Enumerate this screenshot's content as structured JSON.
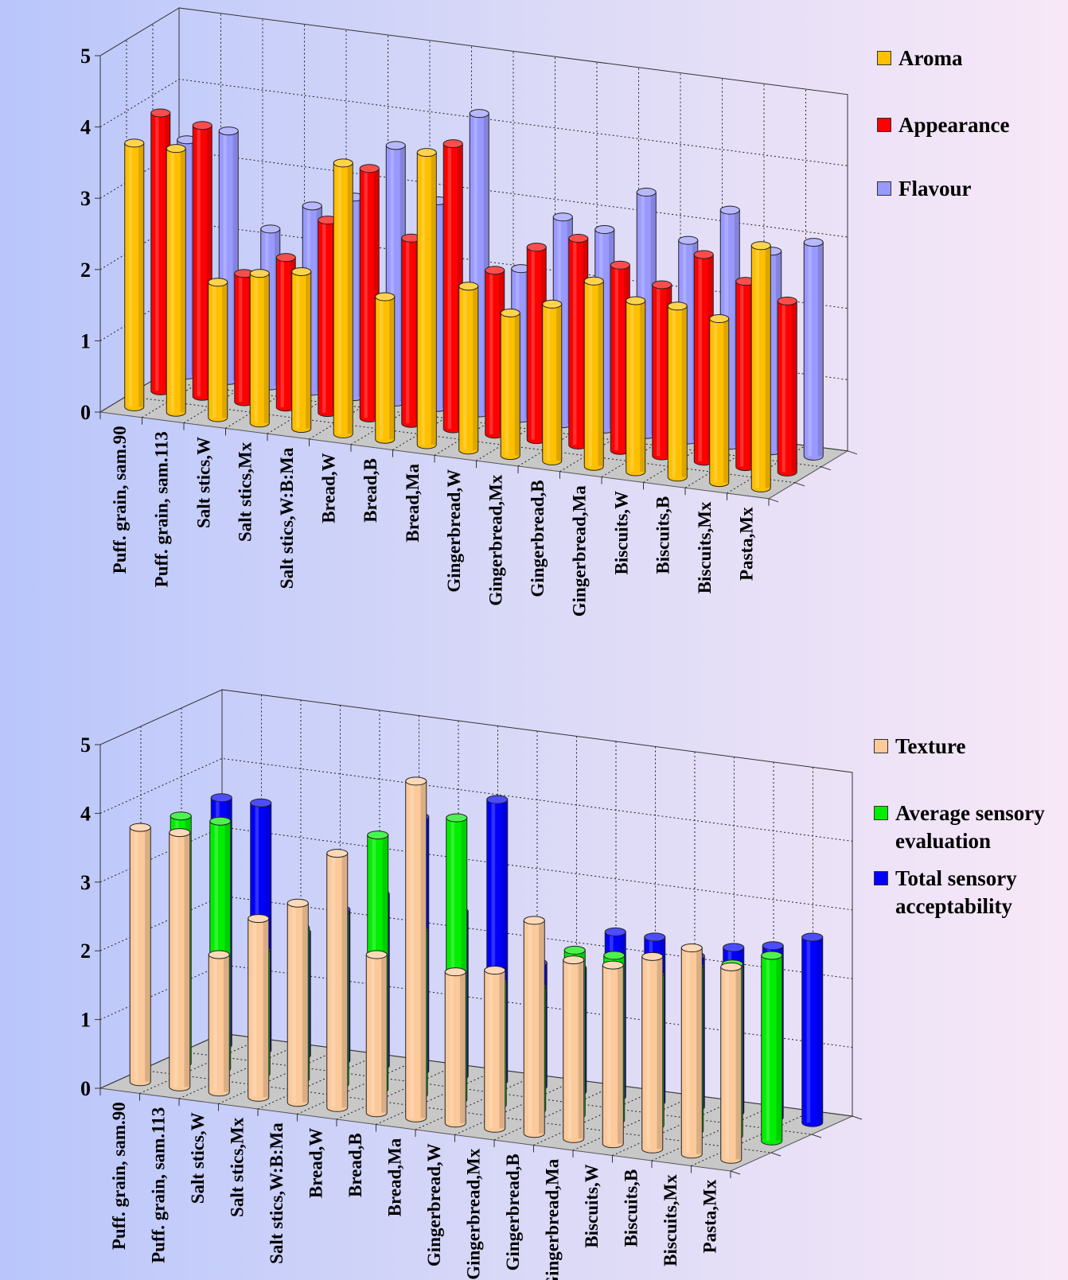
{
  "chart_data": [
    {
      "type": "bar",
      "ylim": [
        0,
        5
      ],
      "yticks": [
        "0",
        "1",
        "2",
        "3",
        "4",
        "5"
      ],
      "grid": true,
      "legend_position": "right",
      "categories": [
        "Puff. grain, sam.90",
        "Puff. grain, sam.113",
        "Salt stics,W",
        "Salt stics,Mx",
        "Salt stics,W:B:Ma",
        "Bread,W",
        "Bread,B",
        "Bread,Ma",
        "Gingerbread,W",
        "Gingerbread,Mx",
        "Gingerbread,B",
        "Gingerbread,Ma",
        "Biscuits,W",
        "Biscuits,B",
        "Biscuits,Mx",
        "Pasta,Mx"
      ],
      "series": [
        {
          "name": "Aroma",
          "color": "#ffc000",
          "values": [
            3.7,
            3.7,
            1.9,
            2.1,
            2.2,
            3.8,
            2.0,
            4.1,
            2.3,
            2.0,
            2.2,
            2.6,
            2.4,
            2.4,
            2.3,
            3.4
          ]
        },
        {
          "name": "Appearance",
          "color": "#ff0000",
          "values": [
            3.9,
            3.8,
            1.8,
            2.1,
            2.7,
            3.5,
            2.6,
            4.0,
            2.3,
            2.7,
            2.9,
            2.6,
            2.4,
            2.9,
            2.6,
            2.4
          ]
        },
        {
          "name": "Flavour",
          "color": "#9999ff",
          "values": [
            3.3,
            3.5,
            2.2,
            2.6,
            2.8,
            3.6,
            2.9,
            4.2,
            2.1,
            2.9,
            2.8,
            3.4,
            2.8,
            3.3,
            2.8,
            3.0
          ]
        }
      ]
    },
    {
      "type": "bar",
      "ylim": [
        0,
        5
      ],
      "yticks": [
        "0",
        "1",
        "2",
        "3",
        "4",
        "5"
      ],
      "grid": true,
      "legend_position": "right",
      "categories": [
        "Puff. grain, sam.90",
        "Puff. grain, sam.113",
        "Salt stics,W",
        "Salt stics,Mx",
        "Salt stics,W:B:Ma",
        "Bread,W",
        "Bread,B",
        "Bread,Ma",
        "Gingerbread,W",
        "Gingerbread,Mx",
        "Gingerbread,B",
        "Gingerbread,Ma",
        "Biscuits,W",
        "Biscuits,B",
        "Biscuits,Mx",
        "Pasta,Mx"
      ],
      "series": [
        {
          "name": "Texture",
          "color": "#fbc99a",
          "values": [
            3.7,
            3.7,
            2.0,
            2.6,
            2.9,
            3.7,
            2.3,
            4.9,
            2.2,
            2.3,
            3.1,
            2.6,
            2.6,
            2.8,
            3.0,
            2.8
          ]
        },
        {
          "name": "Average sensory evaluation",
          "color": "#00ee00",
          "values": [
            3.6,
            3.6,
            1.8,
            2.2,
            2.5,
            3.7,
            2.4,
            4.1,
            1.8,
            1.8,
            2.4,
            2.4,
            2.2,
            2.4,
            2.5,
            2.7
          ]
        },
        {
          "name": "Total sensory acceptability",
          "color": "#0000ff",
          "values": [
            3.6,
            3.6,
            1.8,
            2.2,
            2.5,
            3.7,
            2.4,
            4.1,
            1.8,
            1.8,
            2.4,
            2.4,
            2.2,
            2.4,
            2.5,
            2.7
          ]
        }
      ]
    }
  ]
}
